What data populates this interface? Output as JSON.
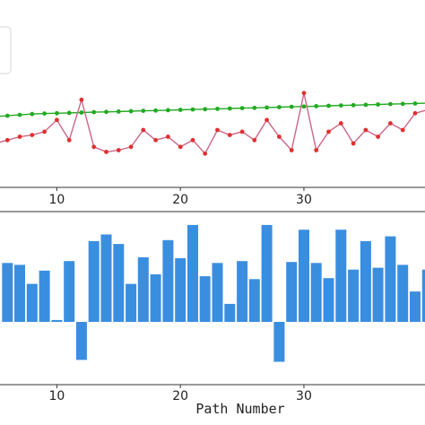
{
  "chart_data": [
    {
      "type": "line",
      "x_ticks": [
        10,
        20,
        30
      ],
      "xlim": [
        5.4,
        39.8
      ],
      "ylim": [
        0,
        1
      ],
      "grid": false,
      "series": [
        {
          "color": "#22aa22",
          "x": [
            5,
            6,
            7,
            8,
            9,
            10,
            11,
            12,
            13,
            14,
            15,
            16,
            17,
            18,
            19,
            20,
            21,
            22,
            23,
            24,
            25,
            26,
            27,
            28,
            29,
            30,
            31,
            32,
            33,
            34,
            35,
            36,
            37,
            38,
            39,
            40
          ],
          "values": [
            0.64,
            0.645,
            0.65,
            0.655,
            0.658,
            0.66,
            0.662,
            0.664,
            0.666,
            0.668,
            0.67,
            0.672,
            0.674,
            0.676,
            0.678,
            0.68,
            0.682,
            0.684,
            0.686,
            0.688,
            0.69,
            0.692,
            0.694,
            0.696,
            0.698,
            0.7,
            0.702,
            0.704,
            0.706,
            0.708,
            0.71,
            0.712,
            0.714,
            0.716,
            0.718,
            0.72
          ]
        },
        {
          "color": "#e03030",
          "line_color": "#cc6688",
          "x": [
            5,
            6,
            7,
            8,
            9,
            10,
            11,
            12,
            13,
            14,
            15,
            16,
            17,
            18,
            19,
            20,
            21,
            22,
            23,
            24,
            25,
            26,
            27,
            28,
            29,
            30,
            31,
            32,
            33,
            34,
            35,
            36,
            37,
            38,
            39,
            40
          ],
          "values": [
            0.48,
            0.5,
            0.52,
            0.53,
            0.55,
            0.62,
            0.5,
            0.74,
            0.46,
            0.43,
            0.44,
            0.46,
            0.56,
            0.5,
            0.52,
            0.46,
            0.5,
            0.42,
            0.56,
            0.53,
            0.55,
            0.5,
            0.62,
            0.52,
            0.44,
            0.78,
            0.44,
            0.55,
            0.6,
            0.48,
            0.56,
            0.52,
            0.6,
            0.56,
            0.66,
            0.68
          ]
        }
      ]
    },
    {
      "type": "bar",
      "x_ticks": [
        10,
        20,
        30
      ],
      "xlim": [
        5.4,
        39.8
      ],
      "ylim": [
        -0.5,
        1.2
      ],
      "grid": false,
      "xlabel": "Path Number",
      "bar_color": "#3a8ee0",
      "categories": [
        6,
        7,
        8,
        9,
        10,
        11,
        12,
        13,
        14,
        15,
        16,
        17,
        18,
        19,
        20,
        21,
        22,
        23,
        24,
        25,
        26,
        27,
        28,
        29,
        30,
        31,
        32,
        33,
        34,
        35,
        36,
        37,
        38,
        39,
        40
      ],
      "values": [
        0.62,
        0.6,
        0.4,
        0.54,
        0.02,
        0.64,
        -0.4,
        0.85,
        0.92,
        0.82,
        0.4,
        0.68,
        0.5,
        0.86,
        0.67,
        1.02,
        0.48,
        0.62,
        0.19,
        0.64,
        0.45,
        1.02,
        -0.42,
        0.63,
        0.97,
        0.62,
        0.46,
        0.97,
        0.55,
        0.85,
        0.57,
        0.9,
        0.6,
        0.32,
        0.55
      ]
    }
  ]
}
